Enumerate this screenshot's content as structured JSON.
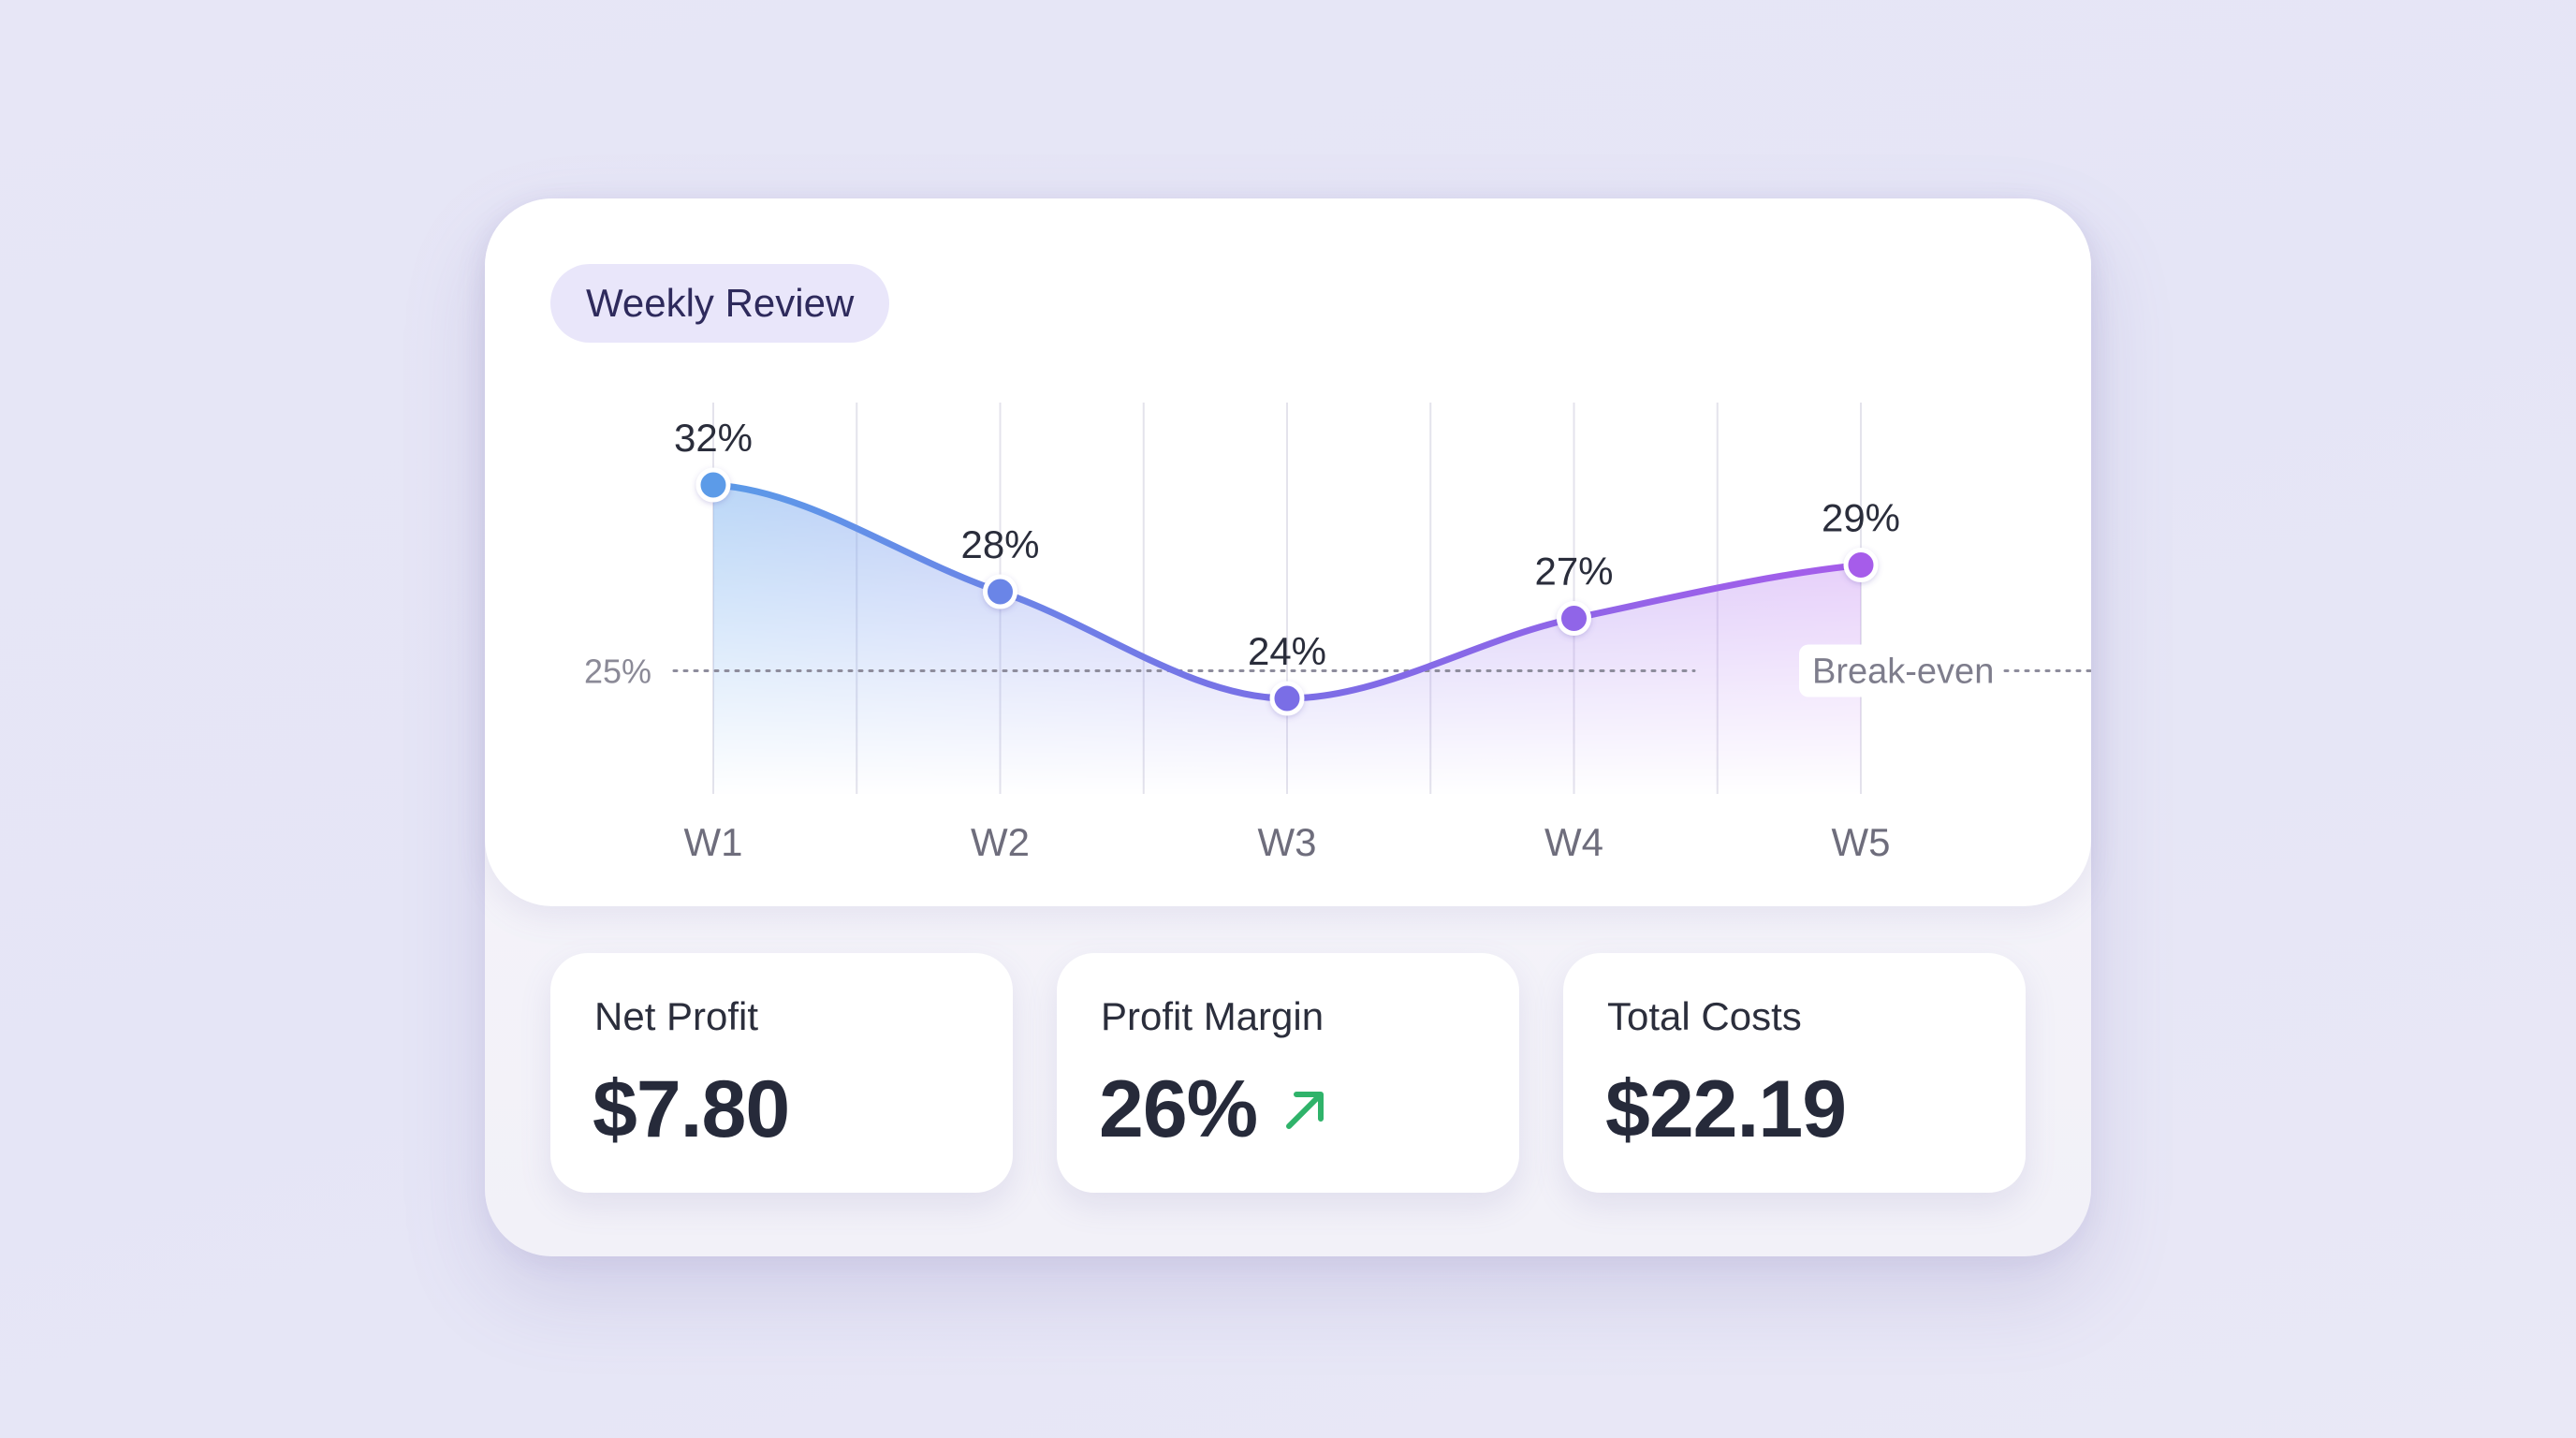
{
  "header": {
    "badge": "Weekly Review"
  },
  "chart_data": {
    "type": "line",
    "categories": [
      "W1",
      "W2",
      "W3",
      "W4",
      "W5"
    ],
    "values": [
      32,
      28,
      24,
      27,
      29
    ],
    "value_labels": [
      "32%",
      "28%",
      "24%",
      "27%",
      "29%"
    ],
    "ylim": [
      21,
      35
    ],
    "reference_line": {
      "value": 25,
      "axis_label": "25%",
      "label": "Break-even"
    },
    "title": "",
    "xlabel": "",
    "ylabel": "",
    "grid": "vertical",
    "colors": {
      "start": "#5b9be8",
      "mid": "#7a6ee6",
      "end": "#a65cea"
    }
  },
  "stats": [
    {
      "label": "Net Profit",
      "value": "$7.80"
    },
    {
      "label": "Profit Margin",
      "value": "26%",
      "trend": "up",
      "trend_icon": "arrow-up-right-icon",
      "trend_color": "#2fb36a"
    },
    {
      "label": "Total Costs",
      "value": "$22.19"
    }
  ]
}
